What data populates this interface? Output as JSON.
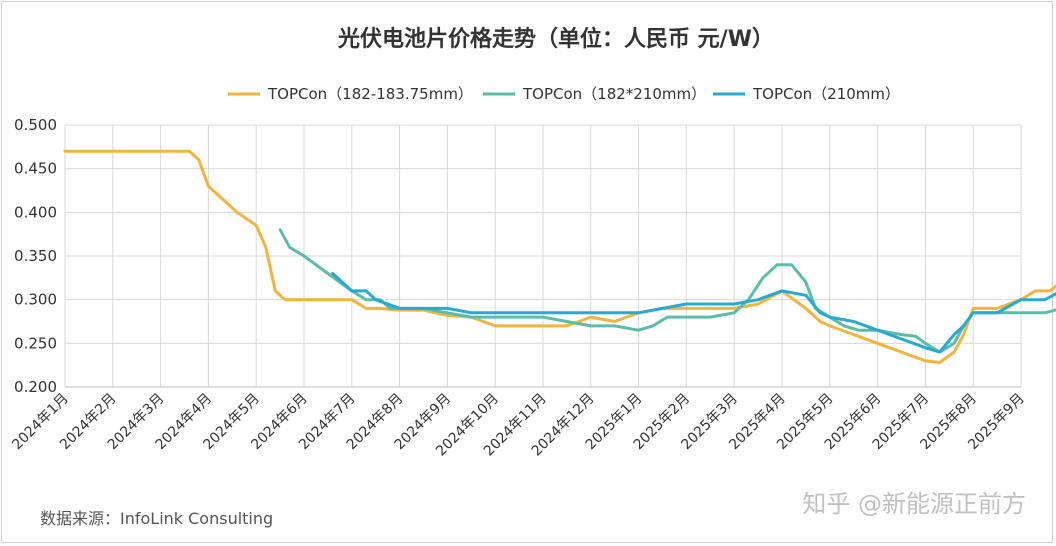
{
  "chart_data": {
    "type": "line",
    "title": "光伏电池片价格走势（单位：人民币 元/W）",
    "source": "数据来源：InfoLink Consulting",
    "watermark": "知乎 @新能源正前方",
    "ylim": [
      0.2,
      0.5
    ],
    "yticks": [
      "0.500",
      "0.450",
      "0.400",
      "0.350",
      "0.300",
      "0.250",
      "0.200"
    ],
    "ytick_values": [
      0.5,
      0.45,
      0.4,
      0.35,
      0.3,
      0.25,
      0.2
    ],
    "categories": [
      "2024年1月",
      "2024年2月",
      "2024年3月",
      "2024年4月",
      "2024年5月",
      "2024年6月",
      "2024年7月",
      "2024年8月",
      "2024年9月",
      "2024年10月",
      "2024年11月",
      "2024年12月",
      "2025年1月",
      "2025年2月",
      "2025年3月",
      "2025年4月",
      "2025年5月",
      "2025年6月",
      "2025年7月",
      "2025年8月",
      "2025年9月"
    ],
    "grid": true,
    "legend_position": "top",
    "series": [
      {
        "name": "TOPCon（182-183.75mm）",
        "color": "#f2b43c",
        "points": [
          [
            0,
            0.47
          ],
          [
            1,
            0.47
          ],
          [
            2,
            0.47
          ],
          [
            2.5,
            0.47
          ],
          [
            2.6,
            0.47
          ],
          [
            2.8,
            0.46
          ],
          [
            3.0,
            0.43
          ],
          [
            3.3,
            0.415
          ],
          [
            3.6,
            0.4
          ],
          [
            4.0,
            0.385
          ],
          [
            4.2,
            0.36
          ],
          [
            4.4,
            0.31
          ],
          [
            4.6,
            0.3
          ],
          [
            5,
            0.3
          ],
          [
            5.5,
            0.3
          ],
          [
            6,
            0.3
          ],
          [
            6.3,
            0.29
          ],
          [
            6.6,
            0.29
          ],
          [
            7,
            0.288
          ],
          [
            7.5,
            0.288
          ],
          [
            8,
            0.282
          ],
          [
            8.5,
            0.28
          ],
          [
            9,
            0.27
          ],
          [
            9.5,
            0.27
          ],
          [
            10,
            0.27
          ],
          [
            10.5,
            0.27
          ],
          [
            11,
            0.28
          ],
          [
            11.5,
            0.275
          ],
          [
            12,
            0.285
          ],
          [
            12.5,
            0.29
          ],
          [
            13,
            0.29
          ],
          [
            13.5,
            0.29
          ],
          [
            14,
            0.29
          ],
          [
            14.5,
            0.295
          ],
          [
            15,
            0.31
          ],
          [
            15.5,
            0.29
          ],
          [
            15.8,
            0.275
          ],
          [
            16,
            0.27
          ],
          [
            16.5,
            0.26
          ],
          [
            17,
            0.25
          ],
          [
            17.5,
            0.24
          ],
          [
            18,
            0.23
          ],
          [
            18.3,
            0.228
          ],
          [
            18.6,
            0.24
          ],
          [
            18.8,
            0.26
          ],
          [
            19,
            0.29
          ],
          [
            19.5,
            0.29
          ],
          [
            20,
            0.3
          ],
          [
            20.3,
            0.31
          ],
          [
            20.6,
            0.31
          ],
          [
            20.85,
            0.32
          ]
        ]
      },
      {
        "name": "TOPCon（182*210mm）",
        "color": "#5bbcaa",
        "points": [
          [
            4.5,
            0.38
          ],
          [
            4.7,
            0.36
          ],
          [
            5,
            0.35
          ],
          [
            5.5,
            0.33
          ],
          [
            6,
            0.31
          ],
          [
            6.3,
            0.3
          ],
          [
            6.6,
            0.3
          ],
          [
            6.8,
            0.29
          ],
          [
            7,
            0.29
          ],
          [
            7.5,
            0.29
          ],
          [
            8,
            0.285
          ],
          [
            8.5,
            0.28
          ],
          [
            9,
            0.28
          ],
          [
            9.5,
            0.28
          ],
          [
            10,
            0.28
          ],
          [
            10.5,
            0.275
          ],
          [
            11,
            0.27
          ],
          [
            11.5,
            0.27
          ],
          [
            12,
            0.265
          ],
          [
            12.3,
            0.27
          ],
          [
            12.6,
            0.28
          ],
          [
            13,
            0.28
          ],
          [
            13.5,
            0.28
          ],
          [
            14,
            0.285
          ],
          [
            14.3,
            0.3
          ],
          [
            14.6,
            0.325
          ],
          [
            14.9,
            0.34
          ],
          [
            15.2,
            0.34
          ],
          [
            15.5,
            0.32
          ],
          [
            15.7,
            0.29
          ],
          [
            16,
            0.28
          ],
          [
            16.3,
            0.27
          ],
          [
            16.6,
            0.265
          ],
          [
            17,
            0.265
          ],
          [
            17.5,
            0.26
          ],
          [
            17.8,
            0.258
          ],
          [
            18,
            0.25
          ],
          [
            18.3,
            0.24
          ],
          [
            18.6,
            0.25
          ],
          [
            18.8,
            0.27
          ],
          [
            19,
            0.285
          ],
          [
            19.5,
            0.285
          ],
          [
            20,
            0.285
          ],
          [
            20.5,
            0.285
          ],
          [
            20.85,
            0.29
          ]
        ]
      },
      {
        "name": "TOPCon（210mm）",
        "color": "#25aad4",
        "points": [
          [
            5.6,
            0.33
          ],
          [
            6,
            0.31
          ],
          [
            6.3,
            0.31
          ],
          [
            6.5,
            0.3
          ],
          [
            7,
            0.29
          ],
          [
            7.5,
            0.29
          ],
          [
            8,
            0.29
          ],
          [
            8.5,
            0.285
          ],
          [
            9,
            0.285
          ],
          [
            9.5,
            0.285
          ],
          [
            10,
            0.285
          ],
          [
            10.5,
            0.285
          ],
          [
            11,
            0.285
          ],
          [
            11.5,
            0.285
          ],
          [
            12,
            0.285
          ],
          [
            12.5,
            0.29
          ],
          [
            13,
            0.295
          ],
          [
            13.5,
            0.295
          ],
          [
            14,
            0.295
          ],
          [
            14.5,
            0.3
          ],
          [
            15,
            0.31
          ],
          [
            15.5,
            0.305
          ],
          [
            15.8,
            0.285
          ],
          [
            16,
            0.28
          ],
          [
            16.5,
            0.275
          ],
          [
            17,
            0.265
          ],
          [
            17.5,
            0.255
          ],
          [
            18,
            0.245
          ],
          [
            18.3,
            0.24
          ],
          [
            18.6,
            0.26
          ],
          [
            18.8,
            0.27
          ],
          [
            19,
            0.285
          ],
          [
            19.5,
            0.285
          ],
          [
            20,
            0.3
          ],
          [
            20.5,
            0.3
          ],
          [
            20.85,
            0.31
          ]
        ]
      }
    ]
  },
  "colors": {
    "grid": "#d9d9d9",
    "axis": "#bfbfbf"
  }
}
